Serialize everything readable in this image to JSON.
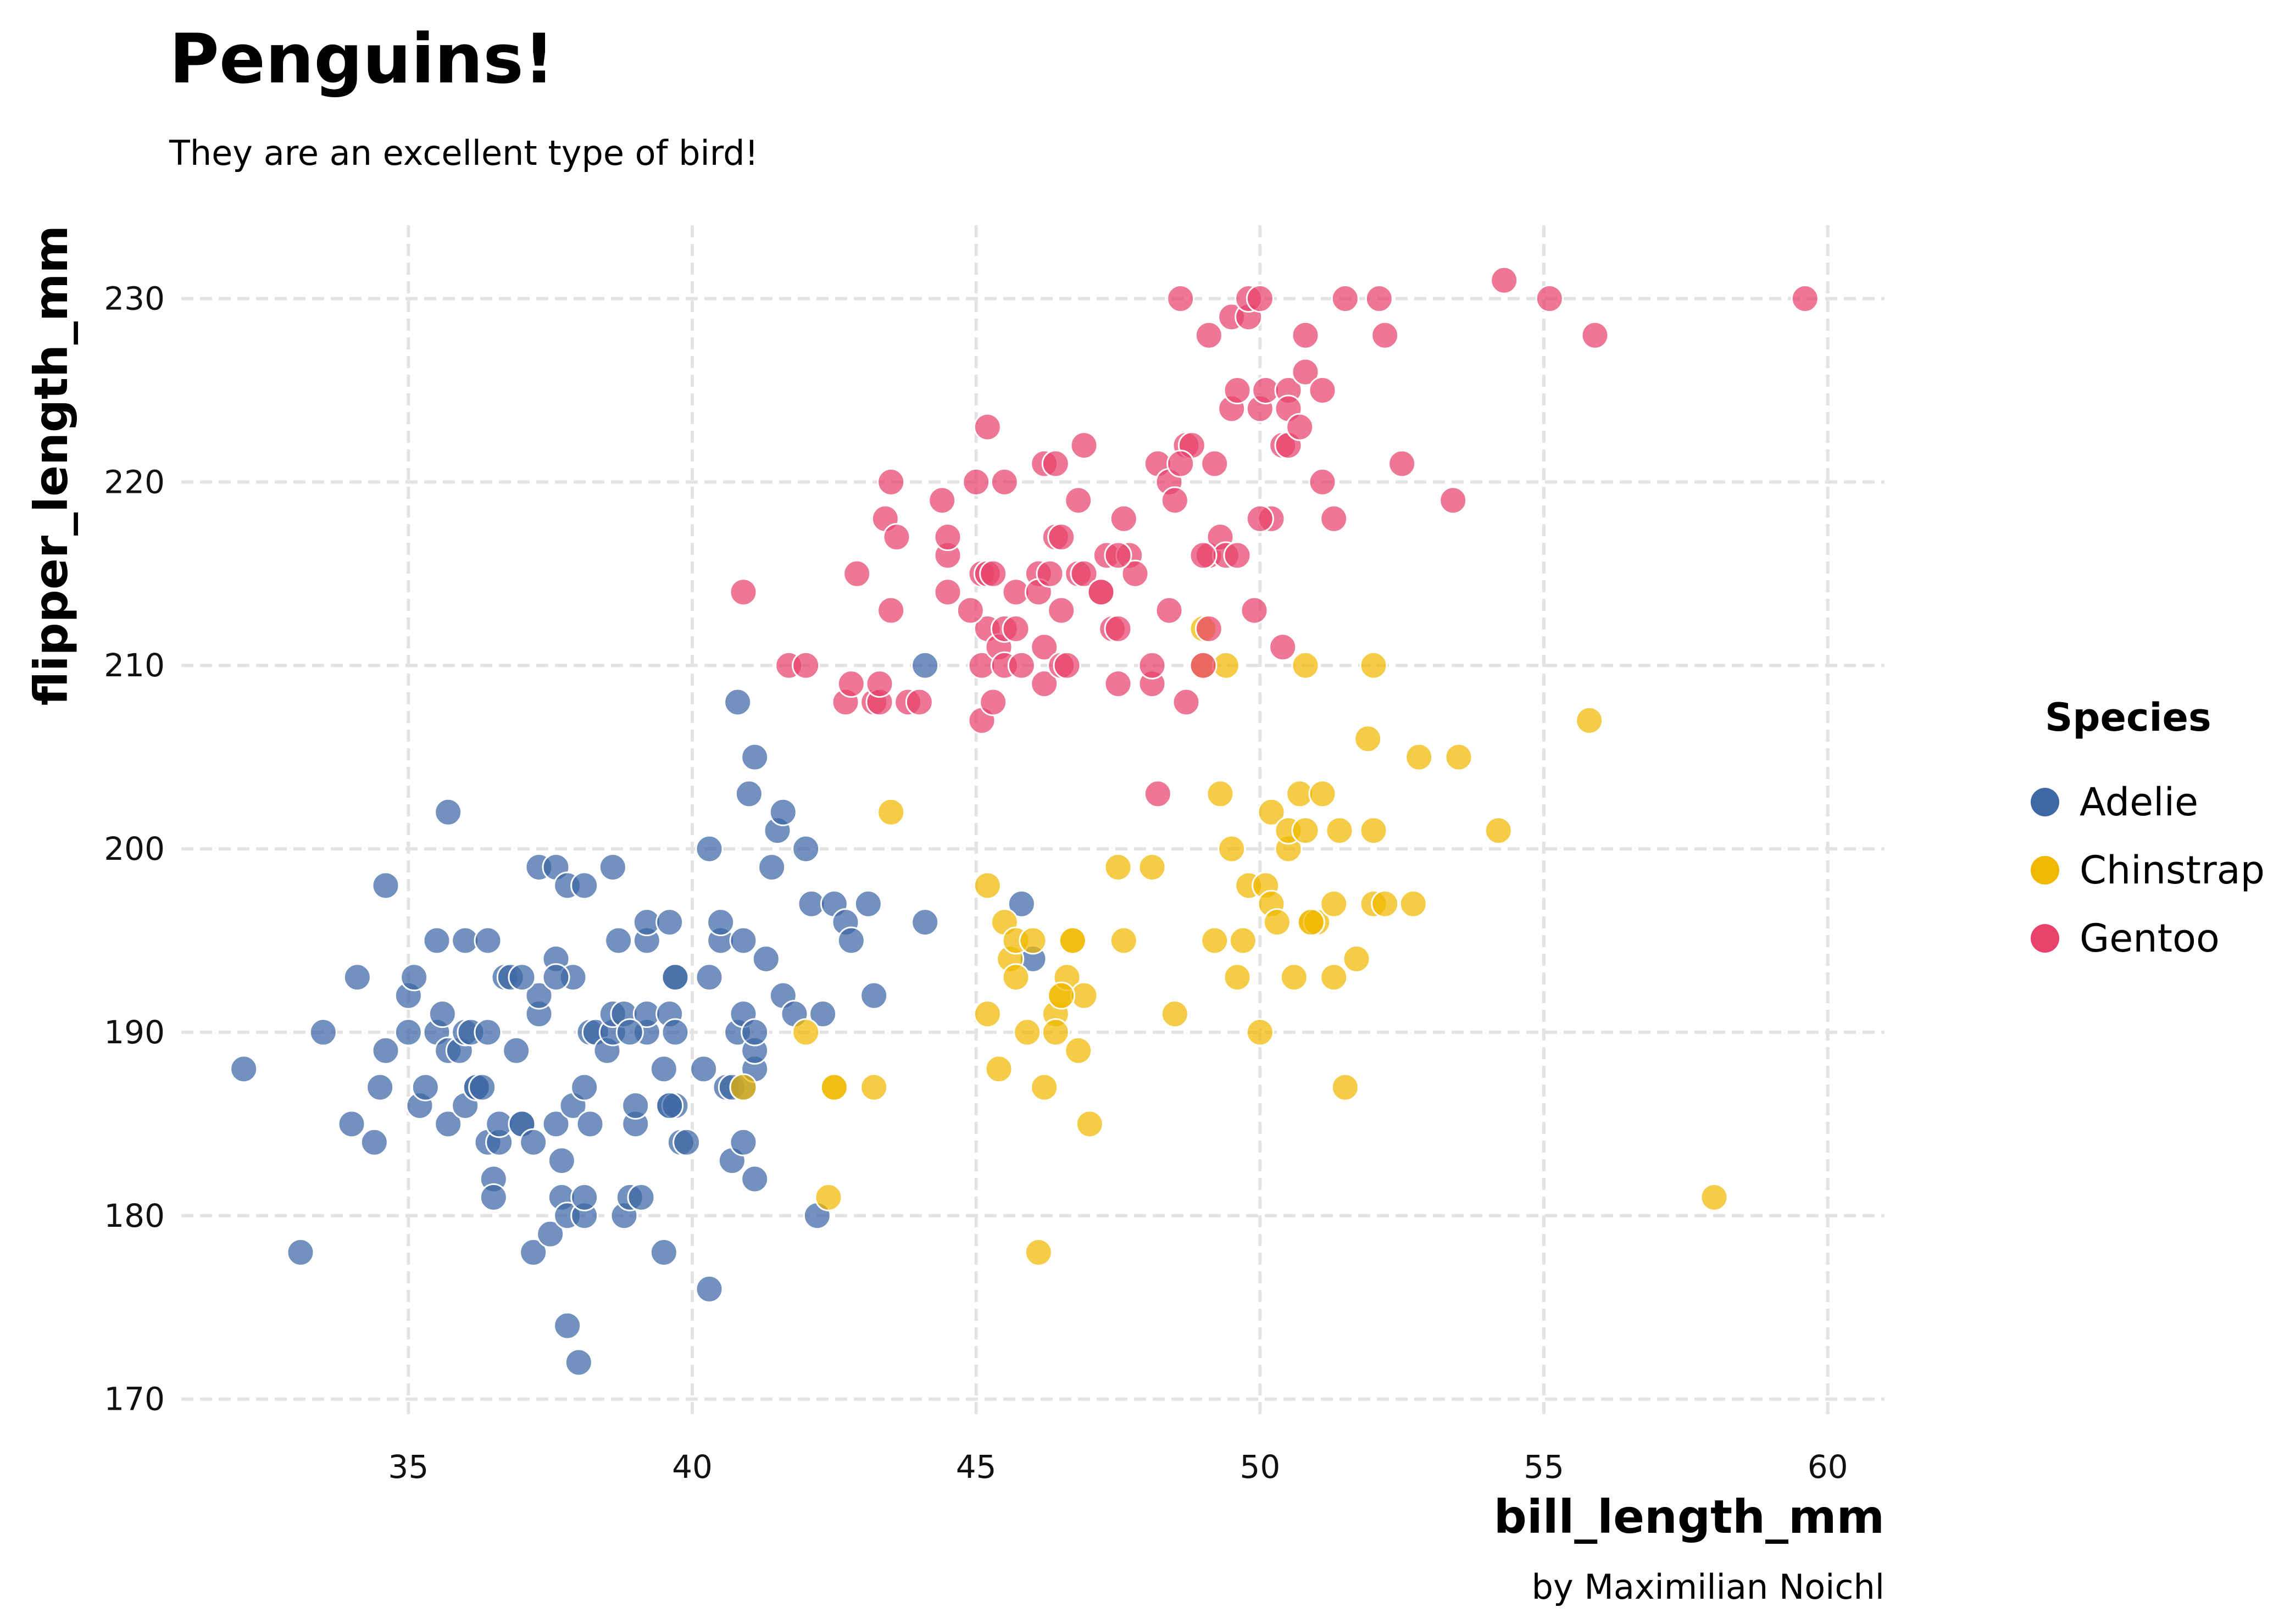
{
  "chart_data": {
    "type": "scatter",
    "title": "Penguins!",
    "subtitle": "They are an excellent type of bird!",
    "xlabel": "bill_length_mm",
    "ylabel": "flipper_length_mm",
    "caption": "by Maximilian Noichl",
    "xlim": [
      31,
      61
    ],
    "ylim": [
      169,
      234
    ],
    "xticks": [
      35,
      40,
      45,
      50,
      55,
      60
    ],
    "yticks": [
      170,
      180,
      190,
      200,
      210,
      220,
      230
    ],
    "grid": true,
    "legend": {
      "title": "Species",
      "placement": "right"
    },
    "series": [
      {
        "name": "Adelie",
        "color": "#3d67a5",
        "points": [
          [
            32.1,
            188
          ],
          [
            33.1,
            178
          ],
          [
            33.5,
            190
          ],
          [
            34.0,
            185
          ],
          [
            34.1,
            193
          ],
          [
            34.4,
            184
          ],
          [
            34.5,
            187
          ],
          [
            34.6,
            189
          ],
          [
            34.6,
            198
          ],
          [
            35.0,
            190
          ],
          [
            35.0,
            192
          ],
          [
            35.1,
            193
          ],
          [
            35.2,
            186
          ],
          [
            35.3,
            187
          ],
          [
            35.5,
            195
          ],
          [
            35.5,
            190
          ],
          [
            35.6,
            191
          ],
          [
            35.7,
            202
          ],
          [
            35.7,
            189
          ],
          [
            35.7,
            185
          ],
          [
            35.9,
            189
          ],
          [
            36.0,
            190
          ],
          [
            36.0,
            186
          ],
          [
            36.0,
            195
          ],
          [
            36.1,
            190
          ],
          [
            36.2,
            187
          ],
          [
            36.2,
            187
          ],
          [
            36.4,
            184
          ],
          [
            36.4,
            190
          ],
          [
            36.4,
            195
          ],
          [
            36.5,
            182
          ],
          [
            36.5,
            181
          ],
          [
            36.6,
            184
          ],
          [
            36.6,
            185
          ],
          [
            36.7,
            193
          ],
          [
            36.8,
            193
          ],
          [
            36.9,
            189
          ],
          [
            37.0,
            185
          ],
          [
            37.0,
            185
          ],
          [
            37.2,
            184
          ],
          [
            37.2,
            178
          ],
          [
            37.3,
            191
          ],
          [
            37.3,
            192
          ],
          [
            37.3,
            199
          ],
          [
            37.5,
            179
          ],
          [
            37.6,
            185
          ],
          [
            37.6,
            194
          ],
          [
            37.6,
            199
          ],
          [
            37.7,
            181
          ],
          [
            37.7,
            183
          ],
          [
            37.8,
            180
          ],
          [
            37.8,
            198
          ],
          [
            37.8,
            174
          ],
          [
            37.9,
            186
          ],
          [
            37.9,
            193
          ],
          [
            38.0,
            172
          ],
          [
            38.1,
            180
          ],
          [
            38.1,
            181
          ],
          [
            38.1,
            187
          ],
          [
            38.1,
            198
          ],
          [
            38.2,
            190
          ],
          [
            38.3,
            190
          ],
          [
            38.5,
            189
          ],
          [
            38.6,
            190
          ],
          [
            38.6,
            191
          ],
          [
            38.6,
            199
          ],
          [
            38.7,
            195
          ],
          [
            38.8,
            180
          ],
          [
            38.8,
            191
          ],
          [
            38.9,
            181
          ],
          [
            39.0,
            185
          ],
          [
            39.0,
            186
          ],
          [
            39.1,
            181
          ],
          [
            39.2,
            190
          ],
          [
            39.2,
            191
          ],
          [
            39.2,
            195
          ],
          [
            39.2,
            196
          ],
          [
            39.5,
            178
          ],
          [
            39.5,
            188
          ],
          [
            39.6,
            186
          ],
          [
            39.6,
            191
          ],
          [
            39.6,
            196
          ],
          [
            39.7,
            186
          ],
          [
            39.7,
            190
          ],
          [
            39.7,
            193
          ],
          [
            39.8,
            184
          ],
          [
            39.9,
            184
          ],
          [
            40.2,
            188
          ],
          [
            40.3,
            176
          ],
          [
            40.3,
            193
          ],
          [
            40.3,
            200
          ],
          [
            40.5,
            195
          ],
          [
            40.5,
            196
          ],
          [
            40.6,
            187
          ],
          [
            40.7,
            183
          ],
          [
            40.7,
            187
          ],
          [
            40.8,
            190
          ],
          [
            40.9,
            184
          ],
          [
            40.9,
            187
          ],
          [
            40.9,
            191
          ],
          [
            40.9,
            195
          ],
          [
            41.0,
            203
          ],
          [
            41.1,
            182
          ],
          [
            41.1,
            188
          ],
          [
            41.1,
            189
          ],
          [
            41.1,
            190
          ],
          [
            41.1,
            205
          ],
          [
            41.3,
            194
          ],
          [
            41.4,
            199
          ],
          [
            41.5,
            201
          ],
          [
            41.6,
            192
          ],
          [
            41.8,
            191
          ],
          [
            42.0,
            200
          ],
          [
            42.1,
            197
          ],
          [
            42.2,
            180
          ],
          [
            42.3,
            191
          ],
          [
            42.5,
            197
          ],
          [
            42.7,
            196
          ],
          [
            42.8,
            195
          ],
          [
            43.1,
            197
          ],
          [
            43.2,
            192
          ],
          [
            44.1,
            196
          ],
          [
            44.1,
            210
          ],
          [
            45.8,
            197
          ],
          [
            46.0,
            194
          ],
          [
            36.3,
            187
          ],
          [
            39.7,
            193
          ],
          [
            38.2,
            185
          ],
          [
            37.6,
            193
          ],
          [
            40.8,
            208
          ],
          [
            41.6,
            202
          ],
          [
            37.0,
            193
          ],
          [
            38.9,
            190
          ],
          [
            39.6,
            186
          ]
        ]
      },
      {
        "name": "Chinstrap",
        "color": "#f0b800",
        "points": [
          [
            40.9,
            187
          ],
          [
            42.4,
            181
          ],
          [
            42.5,
            187
          ],
          [
            42.5,
            187
          ],
          [
            43.2,
            187
          ],
          [
            43.5,
            202
          ],
          [
            45.2,
            198
          ],
          [
            45.4,
            188
          ],
          [
            45.5,
            196
          ],
          [
            45.6,
            194
          ],
          [
            45.7,
            195
          ],
          [
            45.7,
            193
          ],
          [
            45.9,
            190
          ],
          [
            46.0,
            195
          ],
          [
            46.1,
            178
          ],
          [
            46.2,
            187
          ],
          [
            46.4,
            191
          ],
          [
            46.4,
            190
          ],
          [
            46.5,
            192
          ],
          [
            46.6,
            193
          ],
          [
            46.7,
            195
          ],
          [
            46.8,
            189
          ],
          [
            46.9,
            192
          ],
          [
            47.0,
            185
          ],
          [
            47.5,
            199
          ],
          [
            47.6,
            195
          ],
          [
            48.1,
            199
          ],
          [
            48.5,
            191
          ],
          [
            49.0,
            210
          ],
          [
            49.0,
            212
          ],
          [
            49.2,
            195
          ],
          [
            49.3,
            203
          ],
          [
            49.5,
            200
          ],
          [
            49.6,
            193
          ],
          [
            49.7,
            195
          ],
          [
            49.8,
            198
          ],
          [
            50.0,
            190
          ],
          [
            50.1,
            198
          ],
          [
            50.2,
            202
          ],
          [
            50.2,
            197
          ],
          [
            50.3,
            196
          ],
          [
            50.5,
            200
          ],
          [
            50.5,
            201
          ],
          [
            50.6,
            193
          ],
          [
            50.7,
            203
          ],
          [
            50.8,
            201
          ],
          [
            50.9,
            196
          ],
          [
            51.0,
            196
          ],
          [
            51.1,
            203
          ],
          [
            51.3,
            193
          ],
          [
            51.3,
            197
          ],
          [
            51.4,
            201
          ],
          [
            51.5,
            187
          ],
          [
            51.7,
            194
          ],
          [
            51.9,
            206
          ],
          [
            52.0,
            197
          ],
          [
            52.0,
            201
          ],
          [
            52.0,
            210
          ],
          [
            52.2,
            197
          ],
          [
            52.7,
            197
          ],
          [
            52.8,
            205
          ],
          [
            53.5,
            205
          ],
          [
            54.2,
            201
          ],
          [
            55.8,
            207
          ],
          [
            58.0,
            181
          ],
          [
            42.0,
            190
          ],
          [
            45.2,
            191
          ],
          [
            46.7,
            195
          ],
          [
            50.8,
            210
          ],
          [
            49.4,
            210
          ],
          [
            50.9,
            196
          ],
          [
            46.5,
            192
          ]
        ]
      },
      {
        "name": "Gentoo",
        "color": "#e8426c",
        "points": [
          [
            40.9,
            214
          ],
          [
            41.7,
            210
          ],
          [
            42.0,
            210
          ],
          [
            42.7,
            208
          ],
          [
            42.8,
            209
          ],
          [
            42.9,
            215
          ],
          [
            43.2,
            208
          ],
          [
            43.3,
            208
          ],
          [
            43.3,
            209
          ],
          [
            43.4,
            218
          ],
          [
            43.5,
            213
          ],
          [
            43.5,
            220
          ],
          [
            43.6,
            217
          ],
          [
            43.8,
            208
          ],
          [
            44.0,
            208
          ],
          [
            44.4,
            219
          ],
          [
            44.5,
            214
          ],
          [
            44.5,
            216
          ],
          [
            44.5,
            217
          ],
          [
            45.0,
            220
          ],
          [
            45.1,
            207
          ],
          [
            45.1,
            215
          ],
          [
            45.1,
            210
          ],
          [
            45.2,
            212
          ],
          [
            45.2,
            215
          ],
          [
            45.2,
            223
          ],
          [
            45.3,
            208
          ],
          [
            45.3,
            215
          ],
          [
            45.4,
            211
          ],
          [
            45.5,
            210
          ],
          [
            45.5,
            212
          ],
          [
            45.5,
            220
          ],
          [
            45.7,
            214
          ],
          [
            45.8,
            210
          ],
          [
            46.1,
            215
          ],
          [
            46.1,
            214
          ],
          [
            46.2,
            209
          ],
          [
            46.2,
            221
          ],
          [
            46.2,
            211
          ],
          [
            46.3,
            215
          ],
          [
            46.4,
            217
          ],
          [
            46.4,
            221
          ],
          [
            46.5,
            217
          ],
          [
            46.5,
            210
          ],
          [
            46.5,
            213
          ],
          [
            46.6,
            210
          ],
          [
            46.8,
            215
          ],
          [
            46.8,
            219
          ],
          [
            46.9,
            215
          ],
          [
            47.2,
            214
          ],
          [
            47.3,
            216
          ],
          [
            47.4,
            212
          ],
          [
            47.5,
            212
          ],
          [
            47.5,
            209
          ],
          [
            47.7,
            216
          ],
          [
            47.8,
            215
          ],
          [
            48.1,
            209
          ],
          [
            48.1,
            210
          ],
          [
            48.2,
            221
          ],
          [
            48.4,
            213
          ],
          [
            48.4,
            220
          ],
          [
            48.5,
            219
          ],
          [
            48.6,
            230
          ],
          [
            48.7,
            208
          ],
          [
            48.7,
            222
          ],
          [
            48.8,
            222
          ],
          [
            49.0,
            210
          ],
          [
            49.1,
            212
          ],
          [
            49.1,
            216
          ],
          [
            49.1,
            228
          ],
          [
            49.2,
            221
          ],
          [
            49.3,
            217
          ],
          [
            49.4,
            216
          ],
          [
            49.5,
            224
          ],
          [
            49.5,
            229
          ],
          [
            49.6,
            216
          ],
          [
            49.6,
            225
          ],
          [
            49.8,
            229
          ],
          [
            49.8,
            230
          ],
          [
            49.9,
            213
          ],
          [
            50.0,
            224
          ],
          [
            50.0,
            230
          ],
          [
            50.1,
            225
          ],
          [
            50.2,
            218
          ],
          [
            50.4,
            222
          ],
          [
            50.5,
            225
          ],
          [
            50.5,
            222
          ],
          [
            50.5,
            224
          ],
          [
            50.7,
            223
          ],
          [
            50.8,
            226
          ],
          [
            50.8,
            228
          ],
          [
            51.1,
            220
          ],
          [
            51.1,
            225
          ],
          [
            51.3,
            218
          ],
          [
            51.5,
            230
          ],
          [
            52.1,
            230
          ],
          [
            52.2,
            228
          ],
          [
            52.5,
            221
          ],
          [
            53.4,
            219
          ],
          [
            54.3,
            231
          ],
          [
            55.1,
            230
          ],
          [
            55.9,
            228
          ],
          [
            59.6,
            230
          ],
          [
            48.2,
            203
          ],
          [
            47.2,
            214
          ],
          [
            44.9,
            213
          ],
          [
            46.9,
            222
          ],
          [
            50.0,
            218
          ],
          [
            47.6,
            218
          ],
          [
            49.0,
            216
          ],
          [
            50.4,
            211
          ],
          [
            47.5,
            216
          ],
          [
            48.6,
            221
          ],
          [
            45.7,
            212
          ]
        ]
      }
    ]
  }
}
